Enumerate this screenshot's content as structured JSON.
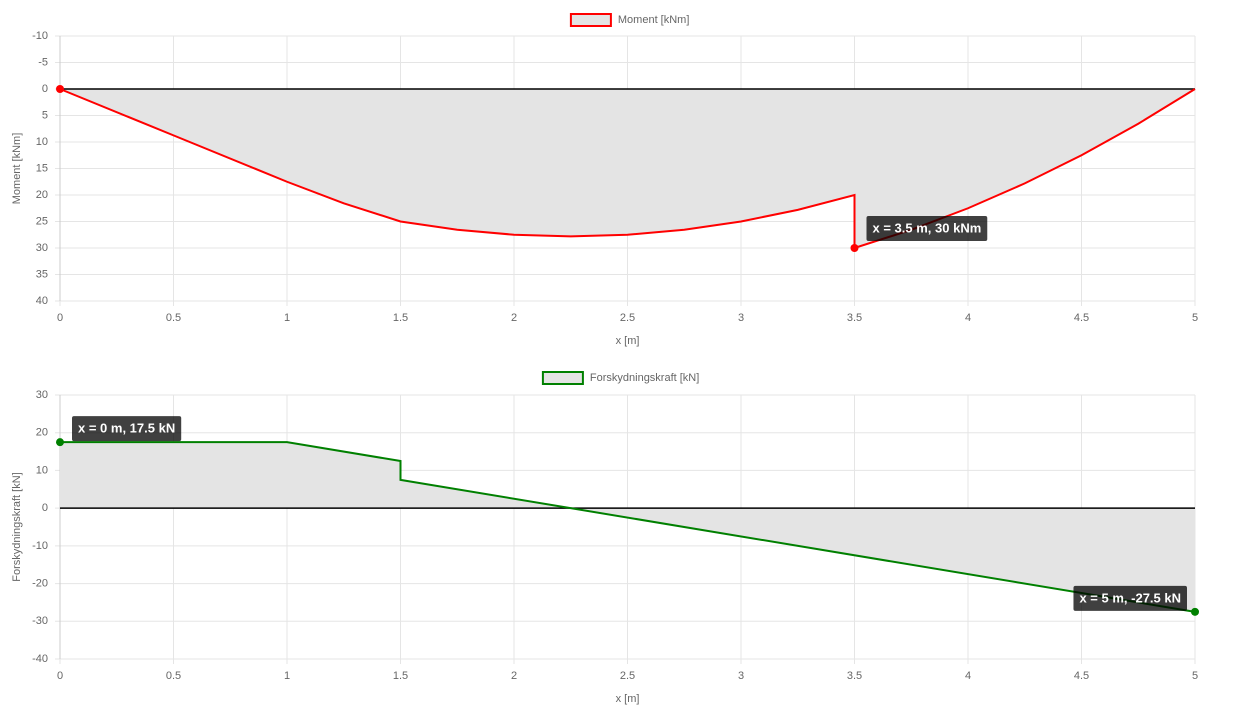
{
  "chart_data": [
    {
      "type": "line",
      "reverse_y": true,
      "grid": true,
      "fill_to_zero": true,
      "fill_color": "#e4e4e4",
      "x_label": "x [m]",
      "y_label": "Moment [kNm]",
      "x": [
        0,
        0.5,
        1,
        1.25,
        1.5,
        1.75,
        2,
        2.25,
        2.5,
        2.75,
        3,
        3.25,
        3.5,
        3.5,
        3.75,
        4,
        4.25,
        4.5,
        4.75,
        5
      ],
      "series": [
        {
          "name": "Moment [kNm]",
          "color": "#ff0000",
          "values": [
            0,
            8.75,
            17.5,
            21.56,
            25,
            26.56,
            27.5,
            27.81,
            27.5,
            26.56,
            25,
            22.81,
            20,
            30,
            26.56,
            22.5,
            17.81,
            12.5,
            6.56,
            0
          ]
        }
      ],
      "xlim": [
        0,
        5
      ],
      "xticks": [
        0,
        0.5,
        1,
        1.5,
        2,
        2.5,
        3,
        3.5,
        4,
        4.5,
        5
      ],
      "ylim": [
        -10,
        40
      ],
      "yticks": [
        -10,
        -5,
        0,
        5,
        10,
        15,
        20,
        25,
        30,
        35,
        40
      ],
      "annotations": [
        {
          "text": "x = 3.5 m, 30 kNm",
          "x": 3.5,
          "y": 30
        }
      ],
      "points": [
        {
          "x": 0,
          "y": 0
        },
        {
          "x": 3.5,
          "y": 30
        }
      ]
    },
    {
      "type": "line",
      "reverse_y": false,
      "grid": true,
      "fill_to_zero": true,
      "fill_color": "#e4e4e4",
      "x_label": "x [m]",
      "y_label": "Forskydningskraft [kN]",
      "x": [
        0,
        1,
        1.5,
        1.5,
        5
      ],
      "series": [
        {
          "name": "Forskydningskraft [kN]",
          "color": "#008000",
          "values": [
            17.5,
            17.5,
            12.5,
            7.5,
            -27.5
          ]
        }
      ],
      "xlim": [
        0,
        5
      ],
      "xticks": [
        0,
        0.5,
        1,
        1.5,
        2,
        2.5,
        3,
        3.5,
        4,
        4.5,
        5
      ],
      "ylim": [
        -40,
        30
      ],
      "yticks": [
        -40,
        -30,
        -20,
        -10,
        0,
        10,
        20,
        30
      ],
      "annotations": [
        {
          "text": "x = 0 m, 17.5 kN",
          "x": 0,
          "y": 17.5
        },
        {
          "text": "x = 5 m, -27.5 kN",
          "x": 5,
          "y": -27.5
        }
      ],
      "points": [
        {
          "x": 0,
          "y": 17.5
        },
        {
          "x": 5,
          "y": -27.5
        }
      ]
    }
  ]
}
